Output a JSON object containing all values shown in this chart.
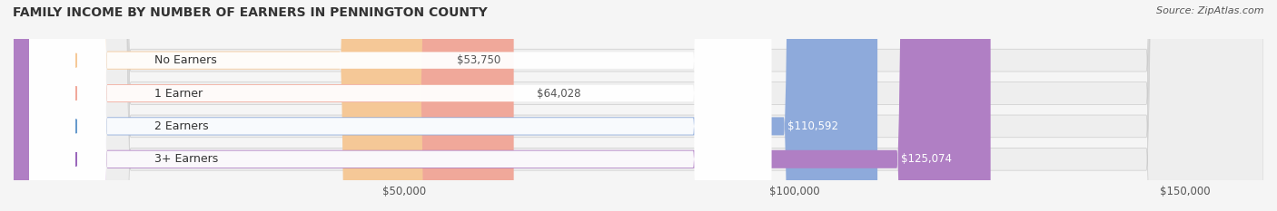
{
  "title": "FAMILY INCOME BY NUMBER OF EARNERS IN PENNINGTON COUNTY",
  "source": "Source: ZipAtlas.com",
  "categories": [
    "No Earners",
    "1 Earner",
    "2 Earners",
    "3+ Earners"
  ],
  "values": [
    53750,
    64028,
    110592,
    125074
  ],
  "bar_colors": [
    "#f5c897",
    "#f0a89a",
    "#8eaadb",
    "#b07fc4"
  ],
  "label_bg_colors": [
    "#f5c897",
    "#f0a89a",
    "#6699cc",
    "#9966bb"
  ],
  "bar_edge_colors": [
    "#e8b87a",
    "#e89080",
    "#6699cc",
    "#9966bb"
  ],
  "track_color": "#e8e8e8",
  "track_edge_color": "#d0d0d0",
  "xmax": 160000,
  "xticks": [
    50000,
    100000,
    150000
  ],
  "xtick_labels": [
    "$50,000",
    "$100,000",
    "$150,000"
  ],
  "value_label_colors": [
    "#555555",
    "#555555",
    "#ffffff",
    "#ffffff"
  ],
  "figsize": [
    14.06,
    2.33
  ],
  "dpi": 100
}
